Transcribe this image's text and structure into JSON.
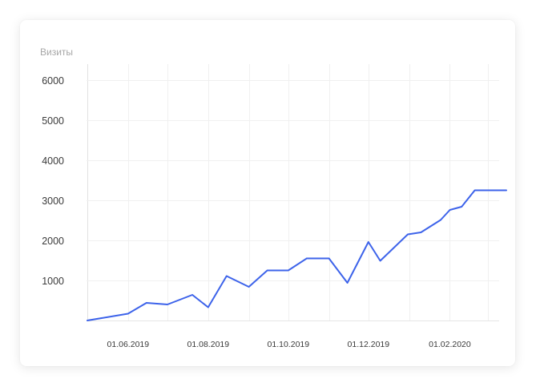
{
  "chart_data": {
    "type": "line",
    "title": "Визиты",
    "xlabel": "",
    "ylabel": "",
    "x_ticks": [
      "01.06.2019",
      "01.08.2019",
      "01.10.2019",
      "01.12.2019",
      "01.02.2020"
    ],
    "y_ticks": [
      "1000",
      "2000",
      "3000",
      "4000",
      "5000",
      "6000"
    ],
    "ylim": [
      0,
      6000
    ],
    "grid": true,
    "line_color": "#3d63ea",
    "series": [
      {
        "x": [
          "2019-05-01",
          "2019-06-01",
          "2019-06-15",
          "2019-07-01",
          "2019-07-20",
          "2019-08-01",
          "2019-08-15",
          "2019-09-01",
          "2019-09-15",
          "2019-10-01",
          "2019-10-15",
          "2019-11-01",
          "2019-11-15",
          "2019-12-01",
          "2019-12-10",
          "2019-12-31",
          "2020-01-10",
          "2020-01-25",
          "2020-02-01",
          "2020-02-10",
          "2020-02-20",
          "2020-03-01",
          "2020-03-10",
          "2020-03-15"
        ],
        "y": [
          0,
          170,
          440,
          400,
          640,
          330,
          1110,
          840,
          1250,
          1250,
          1550,
          1550,
          940,
          1960,
          1490,
          2150,
          2200,
          2510,
          2760,
          2840,
          3250,
          3250,
          3250,
          3250
        ]
      }
    ]
  }
}
